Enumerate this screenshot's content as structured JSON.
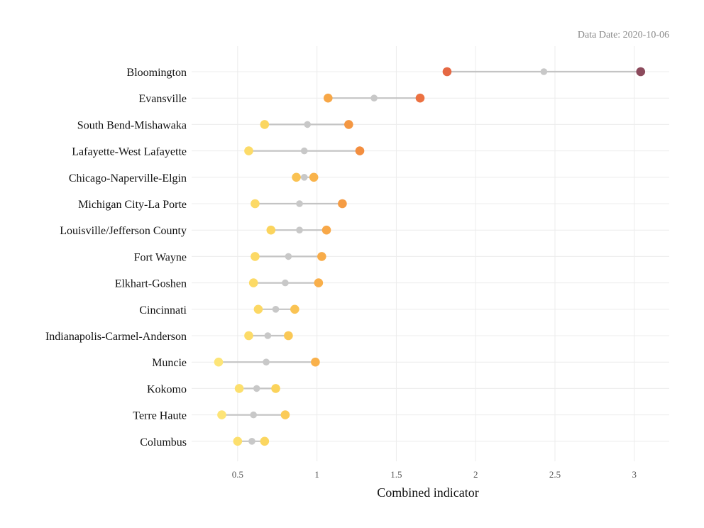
{
  "chart_data": {
    "type": "dumbbell",
    "annotation": "Data Date: 2020-10-06",
    "xlabel": "Combined indicator",
    "ylabel": "",
    "xlim": [
      0.21,
      3.22
    ],
    "xticks": [
      0.5,
      1,
      1.5,
      2,
      2.5,
      3
    ],
    "xtick_labels": [
      "0.5",
      "1",
      "1.5",
      "2",
      "2.5",
      "3"
    ],
    "grid": true,
    "colors": {
      "segment": "#c4c4c4",
      "middle": "#c8c8c8",
      "grid": "#ececec",
      "scale": [
        "#fde77a",
        "#fbd25a",
        "#f9b04a",
        "#f28a3e",
        "#ea6a42",
        "#8c4a5c"
      ]
    },
    "categories": [
      "Bloomington",
      "Evansville",
      "South Bend-Mishawaka",
      "Lafayette-West Lafayette",
      "Chicago-Naperville-Elgin",
      "Michigan City-La Porte",
      "Louisville/Jefferson County",
      "Fort Wayne",
      "Elkhart-Goshen",
      "Cincinnati",
      "Indianapolis-Carmel-Anderson",
      "Muncie",
      "Kokomo",
      "Terre Haute",
      "Columbus"
    ],
    "series": [
      {
        "values": [
          1.82,
          1.07,
          0.67,
          0.57,
          0.87,
          0.61,
          0.71,
          0.61,
          0.6,
          0.63,
          0.57,
          0.38,
          0.51,
          0.4,
          0.5
        ]
      },
      {
        "values": [
          2.43,
          1.36,
          0.94,
          0.92,
          0.92,
          0.89,
          0.89,
          0.82,
          0.8,
          0.74,
          0.69,
          0.68,
          0.62,
          0.6,
          0.59
        ]
      },
      {
        "values": [
          3.04,
          1.65,
          1.2,
          1.27,
          0.98,
          1.16,
          1.06,
          1.03,
          1.01,
          0.86,
          0.82,
          0.99,
          0.74,
          0.8,
          0.67
        ]
      }
    ]
  }
}
